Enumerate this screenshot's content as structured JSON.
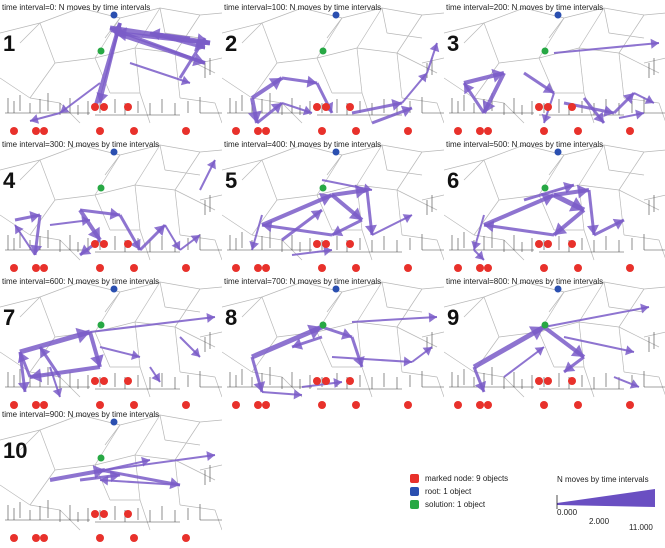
{
  "panels": [
    {
      "id": "1",
      "title": "time interval=0: N moves by time intervals"
    },
    {
      "id": "2",
      "title": "time interval=100: N moves by time intervals"
    },
    {
      "id": "3",
      "title": "time interval=200: N moves by time intervals"
    },
    {
      "id": "4",
      "title": "time interval=300: N moves by time intervals"
    },
    {
      "id": "5",
      "title": "time interval=400: N moves by time intervals"
    },
    {
      "id": "6",
      "title": "time interval=500: N moves by time intervals"
    },
    {
      "id": "7",
      "title": "time interval=600: N moves by time intervals"
    },
    {
      "id": "8",
      "title": "time interval=700: N moves by time intervals"
    },
    {
      "id": "9",
      "title": "time interval=800: N moves by time intervals"
    },
    {
      "id": "10",
      "title": "time interval=900: N moves by time intervals"
    }
  ],
  "legend": {
    "items": [
      {
        "label": "marked node: 9 objects",
        "color": "#e8312b"
      },
      {
        "label": "root: 1 object",
        "color": "#2a4fb0"
      },
      {
        "label": "solution: 1 object",
        "color": "#27a844"
      }
    ]
  },
  "scale": {
    "title": "N moves by time intervals",
    "min_label": "0.000",
    "mid_label": "2.000",
    "max_label": "11.000",
    "color": "#6a4fc2"
  },
  "colors": {
    "arrow": "#7a5cc8",
    "edge": "#b8b8b8",
    "tree": "#444444"
  }
}
